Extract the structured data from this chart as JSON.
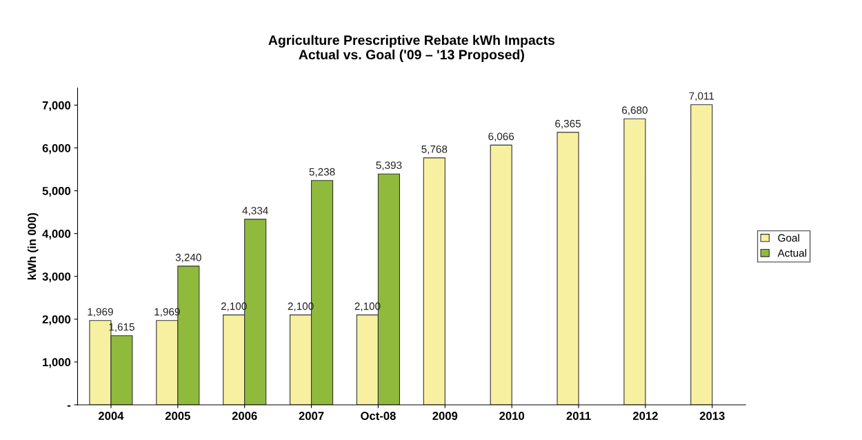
{
  "chart_data": {
    "type": "bar",
    "title": "Agriculture Prescriptive Rebate kWh Impacts\nActual vs. Goal ('09 – '13 Proposed)",
    "ylabel": "kWh (in 000)",
    "categories": [
      "2004",
      "2005",
      "2006",
      "2007",
      "Oct-08",
      "2009",
      "2010",
      "2011",
      "2012",
      "2013"
    ],
    "series": [
      {
        "name": "Goal",
        "color": "#f7f0a0",
        "values": [
          1969,
          1969,
          2100,
          2100,
          2100,
          5768,
          6066,
          6365,
          6680,
          7011
        ],
        "value_labels": [
          "1,969",
          "1,969",
          "2,100",
          "2,100",
          "2,100",
          "5,768",
          "6,066",
          "6,365",
          "6,680",
          "7,011"
        ]
      },
      {
        "name": "Actual",
        "color": "#8fba3c",
        "values": [
          1615,
          3240,
          4334,
          5238,
          5393,
          null,
          null,
          null,
          null,
          null
        ],
        "value_labels": [
          "1,615",
          "3,240",
          "4,334",
          "5,238",
          "5,393",
          null,
          null,
          null,
          null,
          null
        ]
      }
    ],
    "ylim": [
      0,
      7400
    ],
    "yticks": [
      {
        "value": 0,
        "label": "-"
      },
      {
        "value": 1000,
        "label": "1,000"
      },
      {
        "value": 2000,
        "label": "2,000"
      },
      {
        "value": 3000,
        "label": "3,000"
      },
      {
        "value": 4000,
        "label": "4,000"
      },
      {
        "value": 5000,
        "label": "5,000"
      },
      {
        "value": 6000,
        "label": "6,000"
      },
      {
        "value": 7000,
        "label": "7,000"
      }
    ],
    "grid": false,
    "legend": "right"
  }
}
